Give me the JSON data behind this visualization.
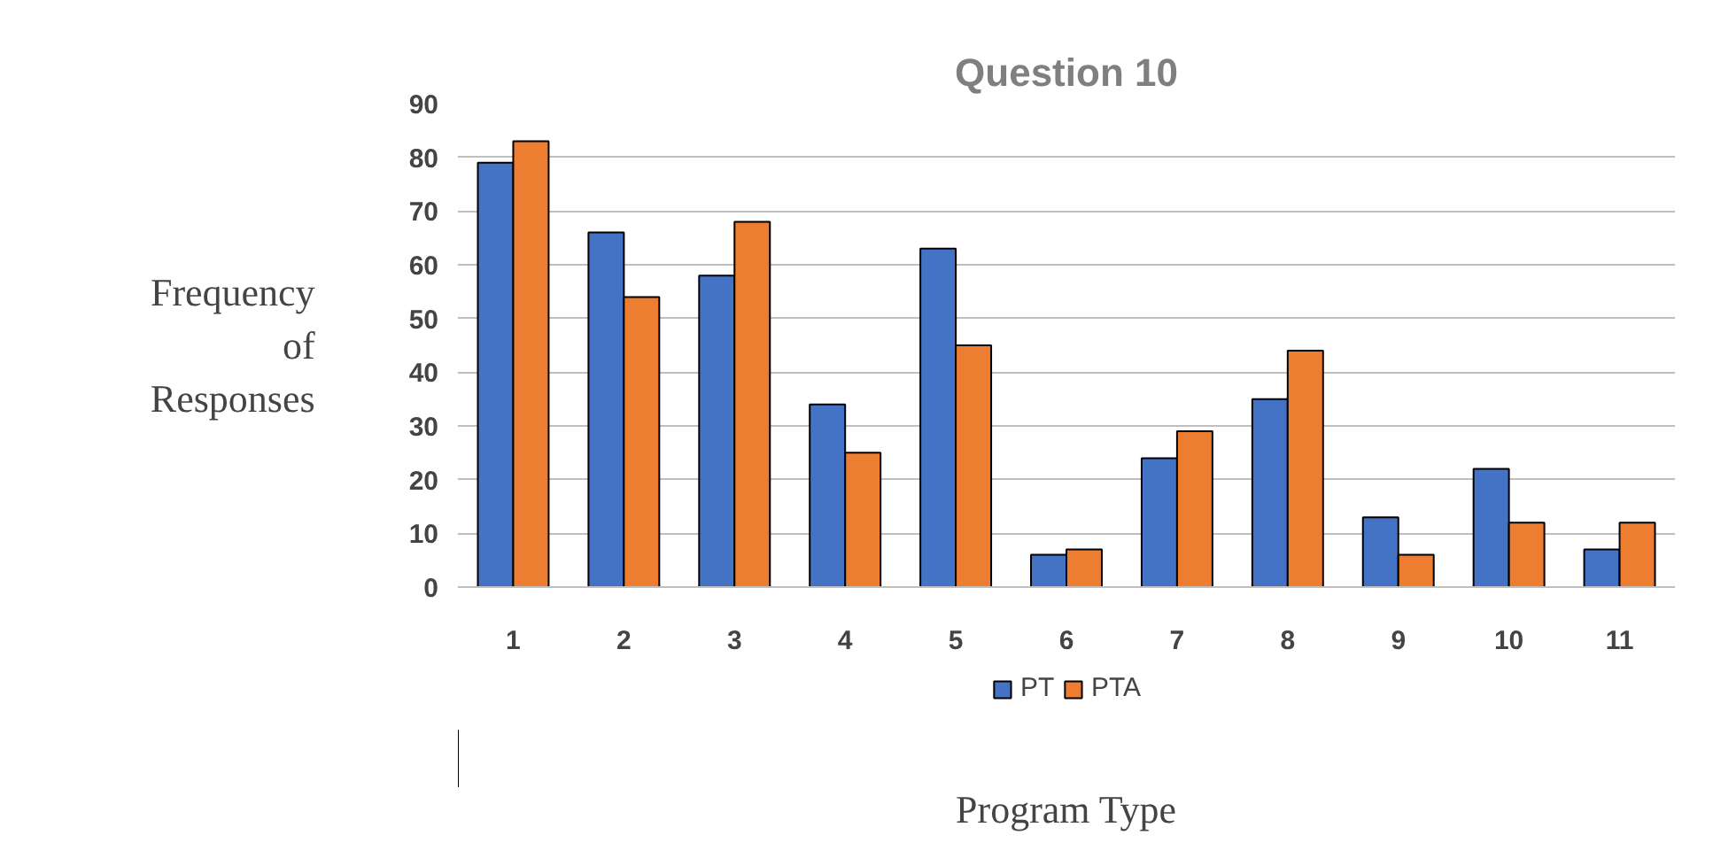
{
  "chart_data": {
    "type": "bar",
    "title": "Question 10",
    "xlabel": "Program Type",
    "ylabel": "Frequency of Responses",
    "categories": [
      "1",
      "2",
      "3",
      "4",
      "5",
      "6",
      "7",
      "8",
      "9",
      "10",
      "11"
    ],
    "series": [
      {
        "name": "PT",
        "color": "#4472c4",
        "values": [
          79,
          66,
          58,
          34,
          63,
          6,
          24,
          35,
          13,
          22,
          7
        ]
      },
      {
        "name": "PTA",
        "color": "#ed7d31",
        "values": [
          83,
          54,
          68,
          25,
          45,
          7,
          29,
          44,
          6,
          12,
          12
        ]
      }
    ],
    "ylim": [
      0,
      90
    ],
    "yticks": [
      0,
      10,
      20,
      30,
      40,
      50,
      60,
      70,
      80,
      90
    ],
    "grid": "y",
    "legend": "bottom"
  }
}
